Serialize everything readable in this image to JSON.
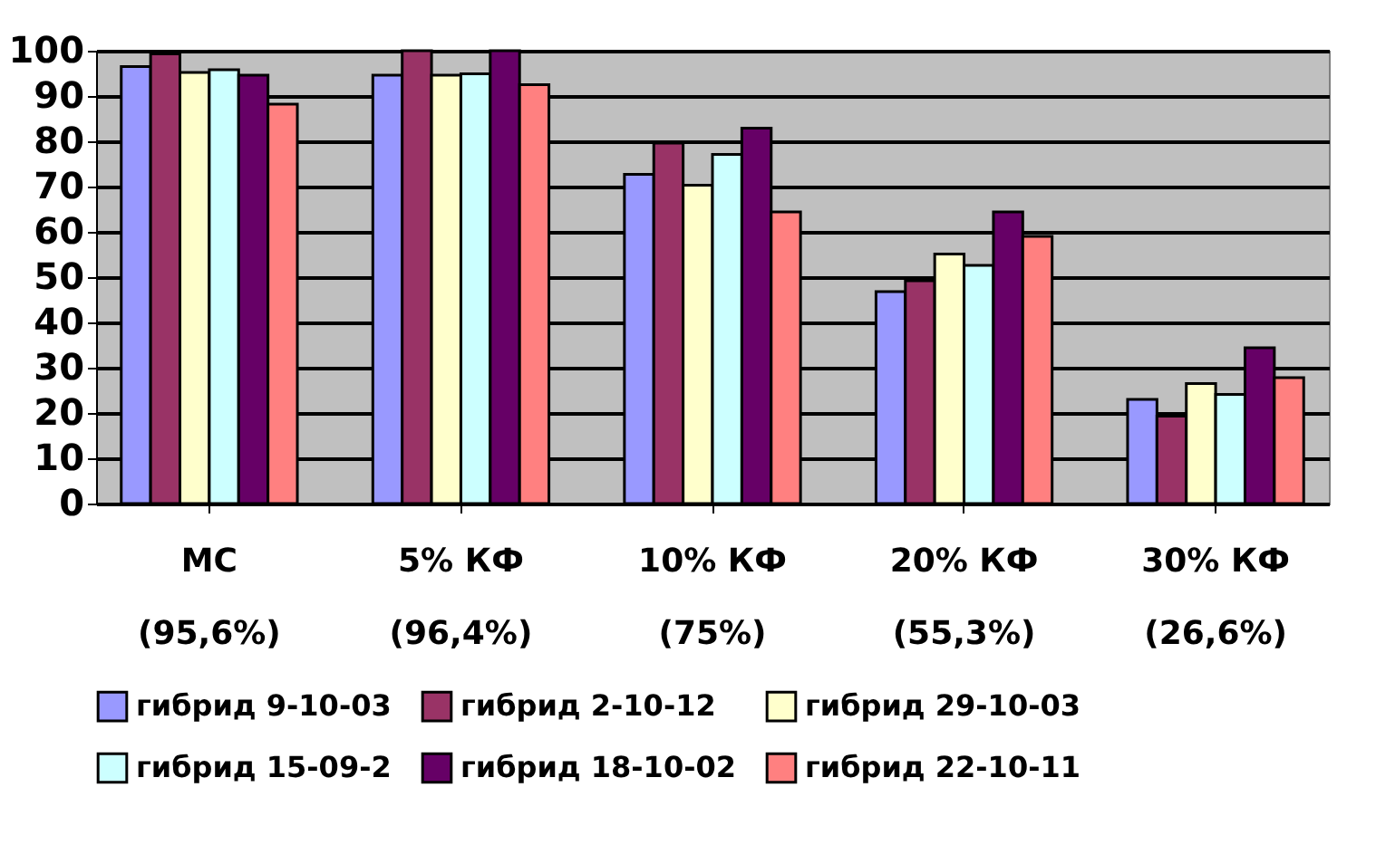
{
  "chart_data": {
    "type": "bar",
    "categories": [
      "МС\n(95,6%)",
      "5% КФ\n(96,4%)",
      "10% КФ\n(75%)",
      "20% КФ\n(55,3%)",
      "30% КФ\n(26,6%)"
    ],
    "series": [
      {
        "name": "гибрид 9-10-03",
        "color": "#9999ff",
        "values": [
          96.5,
          94.6,
          72.7,
          46.8,
          23.0
        ]
      },
      {
        "name": "гибрид 2-10-12",
        "color": "#993366",
        "values": [
          99.3,
          100,
          79.6,
          49.2,
          19.3
        ]
      },
      {
        "name": "гибрид 29-10-03",
        "color": "#ffffcc",
        "values": [
          95.2,
          94.6,
          70.3,
          55.1,
          26.5
        ]
      },
      {
        "name": "гибрид 15-09-2",
        "color": "#ccffff",
        "values": [
          95.8,
          94.9,
          77.1,
          52.6,
          24.1
        ]
      },
      {
        "name": "гибрид 18-10-02",
        "color": "#660066",
        "values": [
          94.6,
          100,
          82.9,
          64.4,
          34.4
        ]
      },
      {
        "name": "гибрид 22-10-11",
        "color": "#ff8080",
        "values": [
          88.2,
          92.5,
          64.4,
          59.0,
          27.8
        ]
      }
    ],
    "ylim": [
      0,
      100
    ],
    "yticks": [
      0,
      10,
      20,
      30,
      40,
      50,
      60,
      70,
      80,
      90,
      100
    ],
    "grid": "y",
    "legend": "bottom"
  }
}
